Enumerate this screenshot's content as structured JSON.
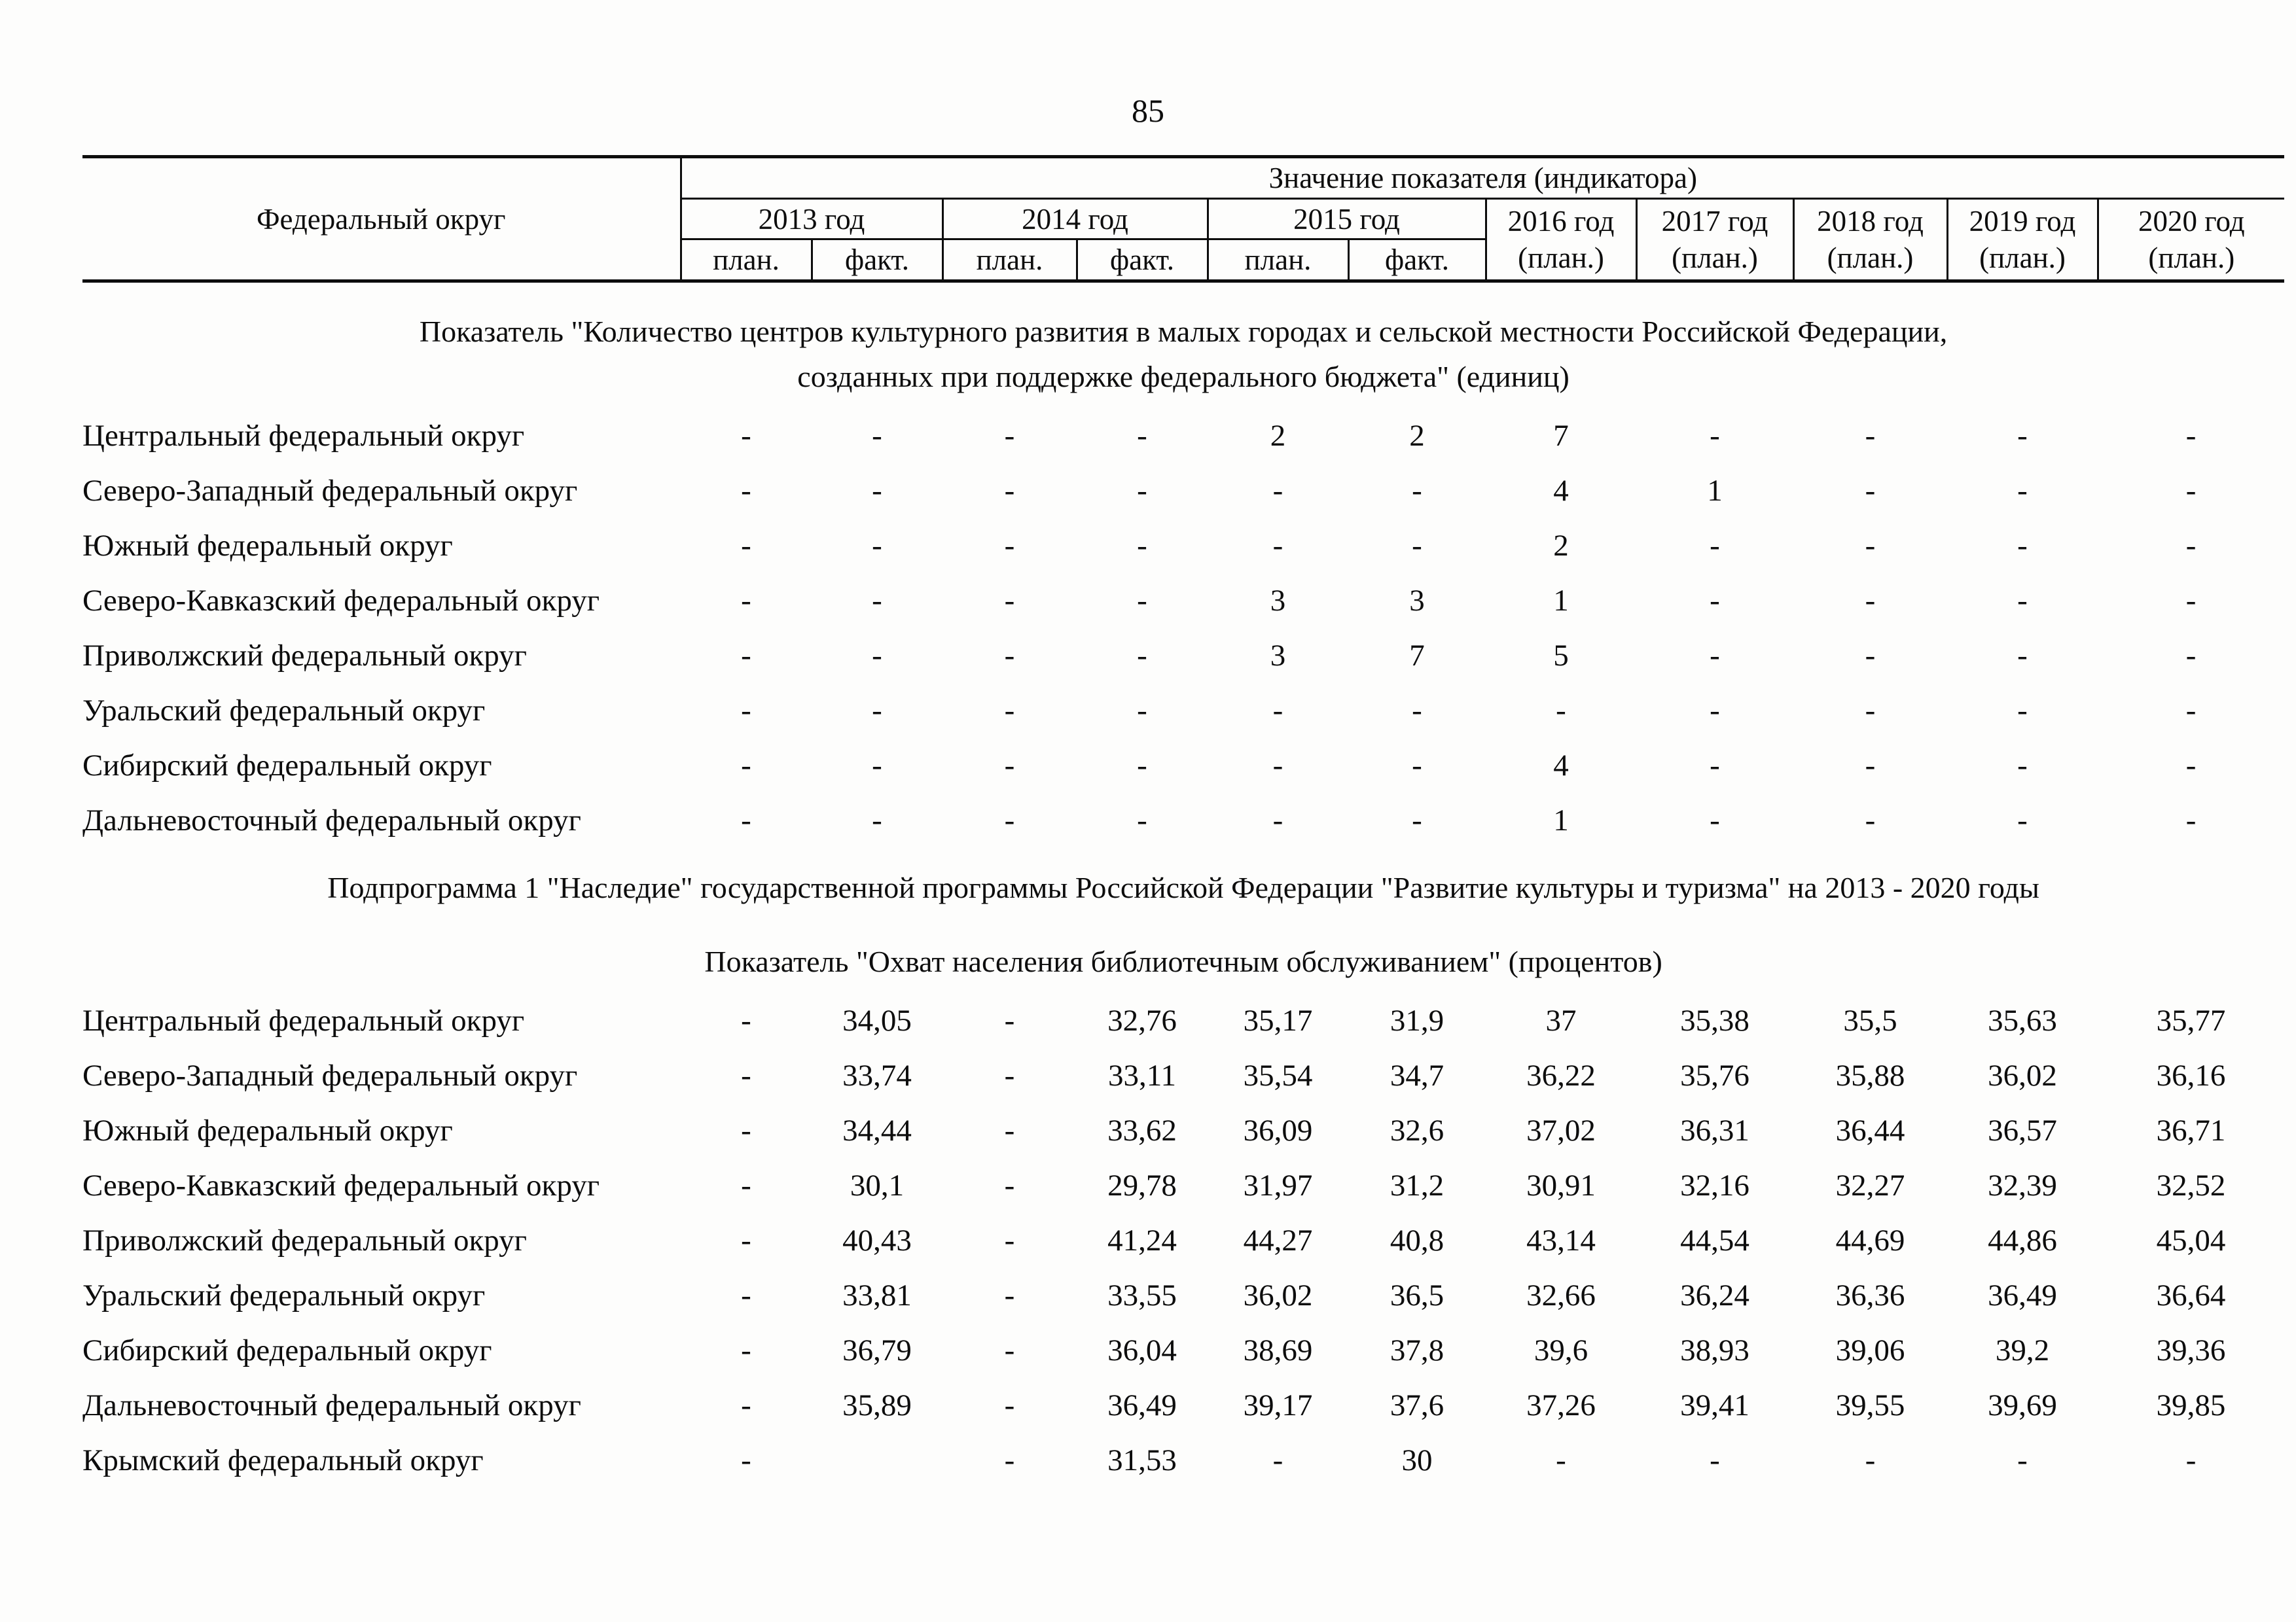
{
  "page": {
    "number": "85"
  },
  "table": {
    "col1_header": "Федеральный округ",
    "group_header": "Значение показателя (индикатора)",
    "years": [
      {
        "label": "2013 год",
        "sub": [
          "план.",
          "факт."
        ]
      },
      {
        "label": "2014 год",
        "sub": [
          "план.",
          "факт."
        ]
      },
      {
        "label": "2015 год",
        "sub": [
          "план.",
          "факт."
        ]
      },
      {
        "label": "2016 год",
        "note": "(план.)"
      },
      {
        "label": "2017 год",
        "note": "(план.)"
      },
      {
        "label": "2018 год",
        "note": "(план.)"
      },
      {
        "label": "2019 год",
        "note": "(план.)"
      },
      {
        "label": "2020 год",
        "note": "(план.)"
      }
    ]
  },
  "sections": [
    {
      "title_lines": [
        "Показатель \"Количество центров культурного развития в малых городах и сельской местности Российской Федерации,",
        "созданных при поддержке федерального бюджета\" (единиц)"
      ],
      "rows": [
        {
          "label": "Центральный федеральный округ",
          "values": [
            "-",
            "-",
            "-",
            "-",
            "2",
            "2",
            "7",
            "-",
            "-",
            "-",
            "-"
          ]
        },
        {
          "label": "Северо-Западный федеральный округ",
          "values": [
            "-",
            "-",
            "-",
            "-",
            "-",
            "-",
            "4",
            "1",
            "-",
            "-",
            "-"
          ]
        },
        {
          "label": "Южный федеральный округ",
          "values": [
            "-",
            "-",
            "-",
            "-",
            "-",
            "-",
            "2",
            "-",
            "-",
            "-",
            "-"
          ]
        },
        {
          "label": "Северо-Кавказский федеральный округ",
          "values": [
            "-",
            "-",
            "-",
            "-",
            "3",
            "3",
            "1",
            "-",
            "-",
            "-",
            "-"
          ]
        },
        {
          "label": "Приволжский федеральный округ",
          "values": [
            "-",
            "-",
            "-",
            "-",
            "3",
            "7",
            "5",
            "-",
            "-",
            "-",
            "-"
          ]
        },
        {
          "label": "Уральский федеральный округ",
          "values": [
            "-",
            "-",
            "-",
            "-",
            "-",
            "-",
            "-",
            "-",
            "-",
            "-",
            "-"
          ]
        },
        {
          "label": "Сибирский федеральный округ",
          "values": [
            "-",
            "-",
            "-",
            "-",
            "-",
            "-",
            "4",
            "-",
            "-",
            "-",
            "-"
          ]
        },
        {
          "label": "Дальневосточный федеральный округ",
          "values": [
            "-",
            "-",
            "-",
            "-",
            "-",
            "-",
            "1",
            "-",
            "-",
            "-",
            "-"
          ]
        }
      ]
    },
    {
      "pre_title": "Подпрограмма 1 \"Наследие\" государственной программы Российской Федерации \"Развитие культуры и туризма\" на 2013 - 2020 годы",
      "title_lines": [
        "Показатель \"Охват населения библиотечным обслуживанием\" (процентов)"
      ],
      "rows": [
        {
          "label": "Центральный федеральный округ",
          "values": [
            "-",
            "34,05",
            "-",
            "32,76",
            "35,17",
            "31,9",
            "37",
            "35,38",
            "35,5",
            "35,63",
            "35,77"
          ]
        },
        {
          "label": "Северо-Западный федеральный округ",
          "values": [
            "-",
            "33,74",
            "-",
            "33,11",
            "35,54",
            "34,7",
            "36,22",
            "35,76",
            "35,88",
            "36,02",
            "36,16"
          ]
        },
        {
          "label": "Южный федеральный округ",
          "values": [
            "-",
            "34,44",
            "-",
            "33,62",
            "36,09",
            "32,6",
            "37,02",
            "36,31",
            "36,44",
            "36,57",
            "36,71"
          ]
        },
        {
          "label": "Северо-Кавказский федеральный округ",
          "values": [
            "-",
            "30,1",
            "-",
            "29,78",
            "31,97",
            "31,2",
            "30,91",
            "32,16",
            "32,27",
            "32,39",
            "32,52"
          ]
        },
        {
          "label": "Приволжский федеральный округ",
          "values": [
            "-",
            "40,43",
            "-",
            "41,24",
            "44,27",
            "40,8",
            "43,14",
            "44,54",
            "44,69",
            "44,86",
            "45,04"
          ]
        },
        {
          "label": "Уральский федеральный округ",
          "values": [
            "-",
            "33,81",
            "-",
            "33,55",
            "36,02",
            "36,5",
            "32,66",
            "36,24",
            "36,36",
            "36,49",
            "36,64"
          ]
        },
        {
          "label": "Сибирский федеральный округ",
          "values": [
            "-",
            "36,79",
            "-",
            "36,04",
            "38,69",
            "37,8",
            "39,6",
            "38,93",
            "39,06",
            "39,2",
            "39,36"
          ]
        },
        {
          "label": "Дальневосточный федеральный округ",
          "values": [
            "-",
            "35,89",
            "-",
            "36,49",
            "39,17",
            "37,6",
            "37,26",
            "39,41",
            "39,55",
            "39,69",
            "39,85"
          ]
        },
        {
          "label": "Крымский федеральный округ",
          "values": [
            "-",
            "",
            "-",
            "31,53",
            "-",
            "30",
            "-",
            "-",
            "-",
            "-",
            "-"
          ]
        }
      ]
    }
  ]
}
